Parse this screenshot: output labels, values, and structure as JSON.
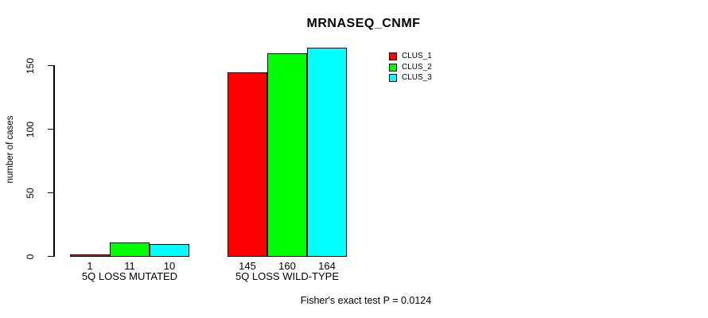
{
  "chart_data": {
    "type": "bar",
    "grouped": true,
    "title": "MRNASEQ_CNMF",
    "ylabel": "number of cases",
    "xlabel": "",
    "categories": [
      "5Q LOSS MUTATED",
      "5Q LOSS WILD-TYPE"
    ],
    "series": [
      {
        "name": "CLUS_1",
        "color": "#FF0000",
        "values": [
          1,
          145
        ]
      },
      {
        "name": "CLUS_2",
        "color": "#00FF00",
        "values": [
          11,
          160
        ]
      },
      {
        "name": "CLUS_3",
        "color": "#00FFFF",
        "values": [
          10,
          164
        ]
      }
    ],
    "bar_value_labels": [
      [
        1,
        11,
        10
      ],
      [
        145,
        160,
        164
      ]
    ],
    "yticks": [
      0,
      50,
      100,
      150
    ],
    "ylim": [
      0,
      170
    ],
    "grid": false,
    "legend_position": "top-right",
    "annotation": "Fisher's exact test P = 0.0124",
    "axis_color": "#000000",
    "background_color": "#FFFFFF"
  }
}
